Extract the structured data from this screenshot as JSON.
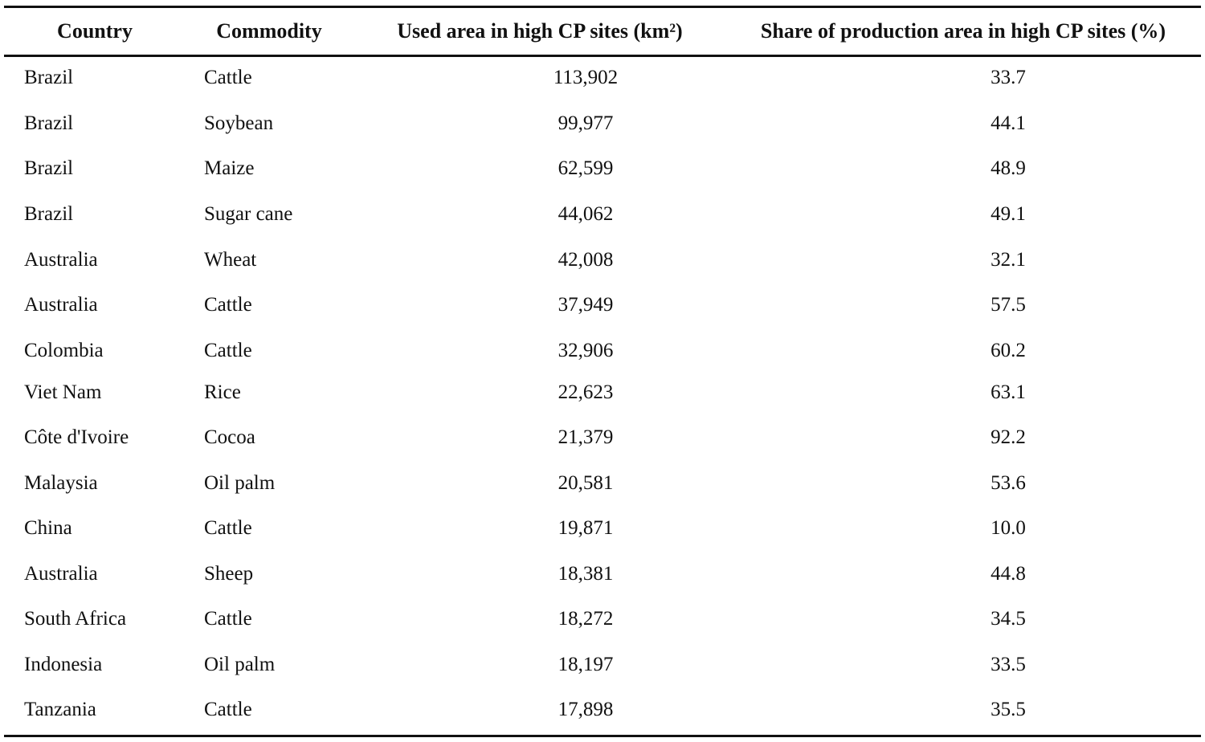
{
  "table": {
    "header": [
      "Country",
      "Commodity",
      "Used area in high CP sites (km²)",
      "Share of production area in high CP sites (%)"
    ],
    "rows": [
      [
        "Brazil",
        "Cattle",
        "113,902",
        "33.7"
      ],
      [
        "Brazil",
        "Soybean",
        "99,977",
        "44.1"
      ],
      [
        "Brazil",
        "Maize",
        "62,599",
        "48.9"
      ],
      [
        "Brazil",
        "Sugar cane",
        "44,062",
        "49.1"
      ],
      [
        "Australia",
        "Wheat",
        "42,008",
        "32.1"
      ],
      [
        "Australia",
        "Cattle",
        "37,949",
        "57.5"
      ],
      [
        "Colombia",
        "Cattle",
        "32,906",
        "60.2"
      ],
      [
        "Viet Nam",
        "Rice",
        "22,623",
        "63.1"
      ],
      [
        "Côte d'Ivoire",
        "Cocoa",
        "21,379",
        "92.2"
      ],
      [
        "Malaysia",
        "Oil palm",
        "20,581",
        "53.6"
      ],
      [
        "China",
        "Cattle",
        "19,871",
        "10.0"
      ],
      [
        "Australia",
        "Sheep",
        "18,381",
        "44.8"
      ],
      [
        "South Africa",
        "Cattle",
        "18,272",
        "34.5"
      ],
      [
        "Indonesia",
        "Oil palm",
        "18,197",
        "33.5"
      ],
      [
        "Tanzania",
        "Cattle",
        "17,898",
        "35.5"
      ]
    ]
  }
}
